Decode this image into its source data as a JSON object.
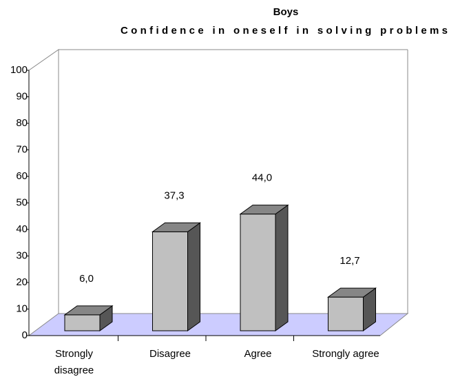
{
  "chart_data": {
    "type": "bar3d",
    "title": "Boys",
    "subtitle": "Confidence in oneself in solving problems",
    "categories": [
      "Strongly disagree",
      "Disagree",
      "Agree",
      "Strongly agree"
    ],
    "values": [
      6.0,
      37.3,
      44.0,
      12.7
    ],
    "value_labels": [
      "6,0",
      "37,3",
      "44,0",
      "12,7"
    ],
    "color": "#c0c0c0",
    "floor_color": "#ccccff",
    "ylim": [
      0,
      100
    ],
    "yticks": [
      0,
      10,
      20,
      30,
      40,
      50,
      60,
      70,
      80,
      90,
      100
    ],
    "grid": false
  }
}
